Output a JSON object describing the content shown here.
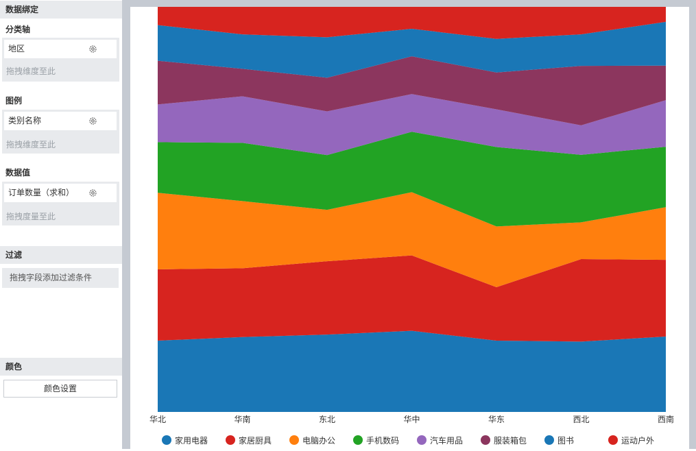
{
  "binding": {
    "title": "数据绑定",
    "category_axis": {
      "label": "分类轴",
      "field": "地区",
      "drop_hint": "拖拽维度至此"
    },
    "legend": {
      "label": "图例",
      "field": "类别名称",
      "drop_hint": "拖拽维度至此"
    },
    "value": {
      "label": "数据值",
      "field": "订单数量（求和）",
      "drop_hint": "拖拽度量至此"
    }
  },
  "filter": {
    "title": "过滤",
    "hint": "拖拽字段添加过滤条件"
  },
  "color": {
    "title": "颜色",
    "button_label": "颜色设置"
  },
  "chart_data": {
    "type": "area",
    "stacked": true,
    "percent_stacked": true,
    "categories": [
      "华北",
      "华南",
      "东北",
      "华中",
      "华东",
      "西北",
      "西南"
    ],
    "ylim": [
      0,
      100
    ],
    "legend_position": "bottom",
    "series": [
      {
        "name": "家用电器",
        "color": "#1a77b6",
        "values": [
          17.6,
          18.5,
          19.1,
          20.0,
          17.6,
          17.4,
          18.6
        ]
      },
      {
        "name": "家居厨具",
        "color": "#d7241f",
        "values": [
          17.6,
          17.0,
          18.1,
          18.6,
          13.2,
          20.4,
          18.9
        ]
      },
      {
        "name": "电脑办公",
        "color": "#ff7f0e",
        "values": [
          18.9,
          16.6,
          12.7,
          15.6,
          15.0,
          9.1,
          13.0
        ]
      },
      {
        "name": "手机数码",
        "color": "#22a324",
        "values": [
          12.5,
          14.4,
          13.5,
          14.9,
          19.6,
          16.7,
          14.9
        ]
      },
      {
        "name": "汽车用品",
        "color": "#9467bd",
        "values": [
          9.3,
          11.5,
          10.8,
          9.3,
          9.3,
          7.3,
          11.5
        ]
      },
      {
        "name": "服装箱包",
        "color": "#8c365e",
        "values": [
          10.8,
          6.8,
          8.3,
          9.3,
          9.1,
          14.7,
          8.5
        ]
      },
      {
        "name": "图书",
        "color": "#1a77b6",
        "values": [
          8.8,
          8.5,
          10.0,
          6.8,
          8.3,
          7.8,
          10.8
        ]
      },
      {
        "name": "运动户外",
        "color": "#d7241f",
        "values": [
          4.5,
          6.8,
          7.5,
          5.4,
          7.9,
          6.8,
          3.7
        ]
      }
    ]
  }
}
